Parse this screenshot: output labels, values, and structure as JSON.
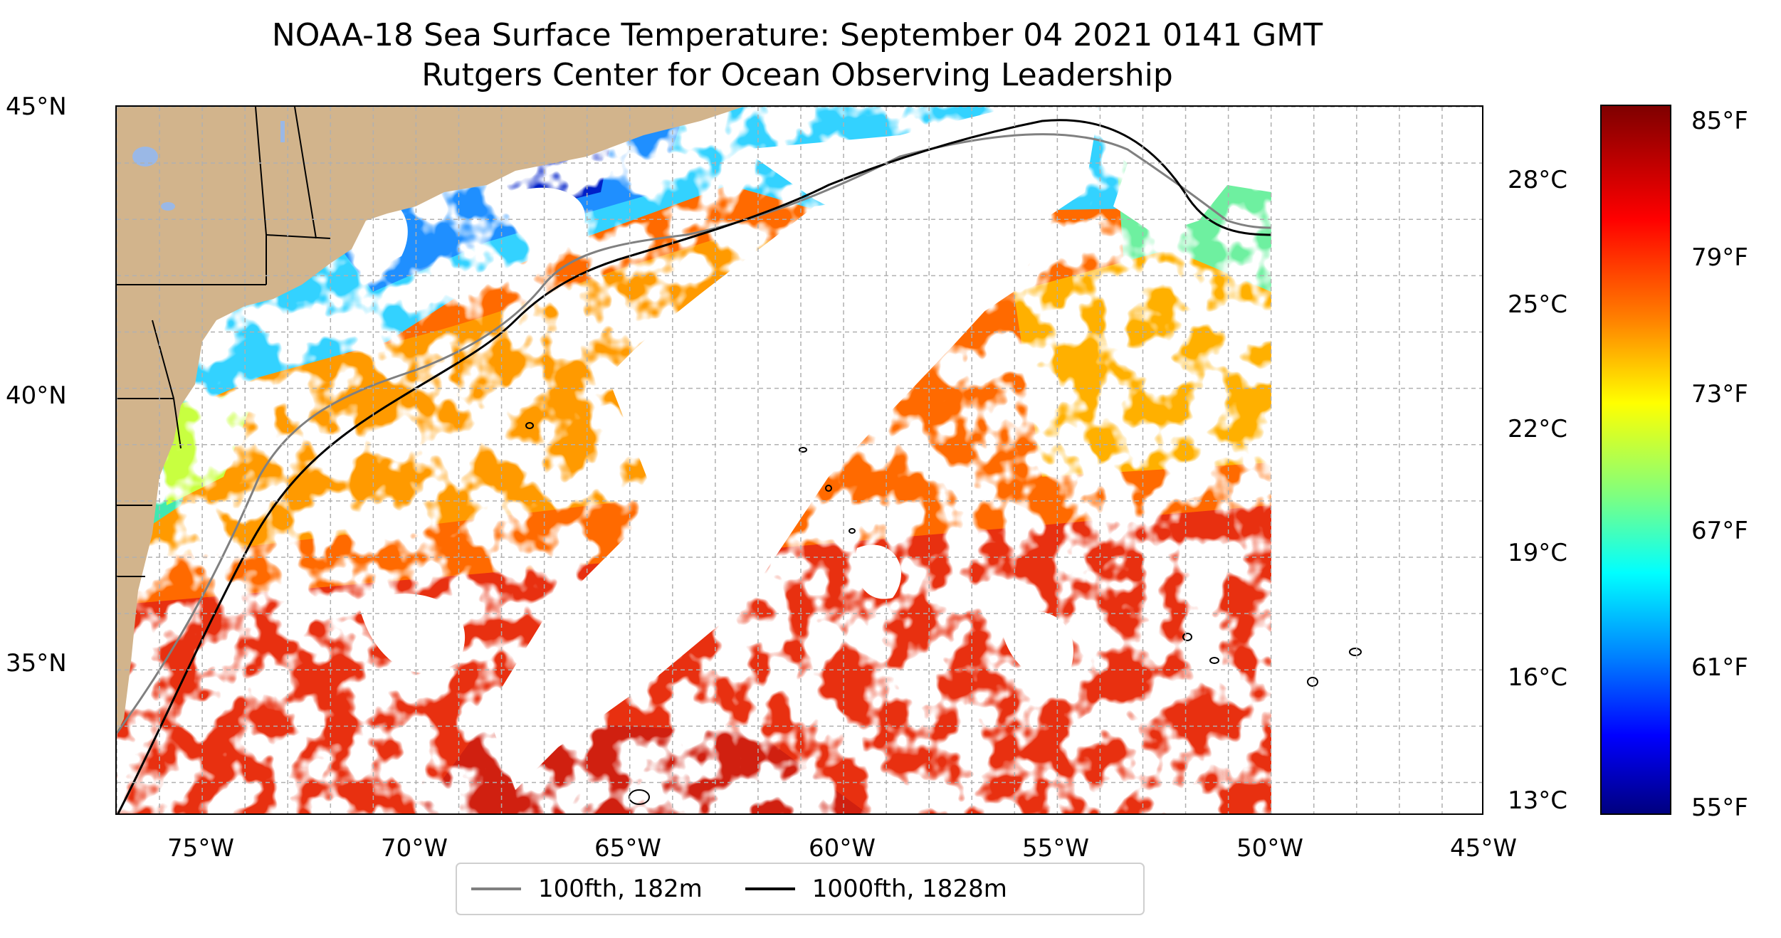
{
  "title": {
    "line1": "NOAA-18 Sea Surface Temperature: September 04 2021 0141 GMT",
    "line2": "Rutgers Center for Ocean Observing Leadership"
  },
  "map": {
    "lon_range": [
      -77,
      -45
    ],
    "lat_range": [
      32.4,
      45
    ],
    "lon_ticks": [
      "75°W",
      "70°W",
      "65°W",
      "60°W",
      "55°W",
      "50°W",
      "45°W"
    ],
    "lat_ticks": [
      "45°N",
      "40°N",
      "35°N"
    ],
    "grid": "dashed, every 1°",
    "land_color": "#d2b48c",
    "water_lake_color": "#9ab8e6"
  },
  "colorbar": {
    "colormap": "jet",
    "celsius_ticks": [
      "28°C",
      "25°C",
      "22°C",
      "19°C",
      "16°C",
      "13°C"
    ],
    "fahrenheit_ticks": [
      "85°F",
      "79°F",
      "73°F",
      "67°F",
      "61°F",
      "55°F"
    ]
  },
  "legend": {
    "entries": [
      {
        "label": "100fth, 182m",
        "color": "#808080"
      },
      {
        "label": "1000fth, 1828m",
        "color": "#000000"
      }
    ]
  }
}
